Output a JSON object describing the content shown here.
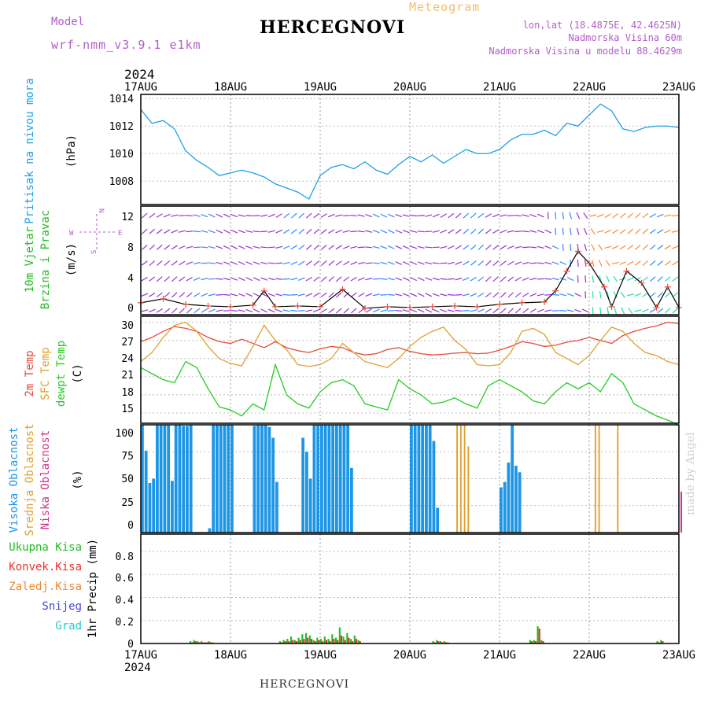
{
  "header": {
    "model_label": "Model",
    "model_name": "wrf-nmm_v3.9.1  e1km",
    "title": "HERCEGNOVI",
    "subtitle": "Meteogram",
    "lonlat": "lon,lat (18.4875E, 42.4625N)",
    "elevation": "Nadmorska Visina 60m",
    "model_elevation": "Nadmorska Visina u modelu 88.4629m",
    "year": "2024"
  },
  "footer": {
    "station": "HERCEGNOVI",
    "watermark": "made by Angel"
  },
  "colors": {
    "pressure": "#1ea0e6",
    "temp2m": "#e84a3a",
    "sfc": "#e0a030",
    "dewpt": "#22cc22",
    "high_cloud": "#1e96e6",
    "mid_cloud": "#e0a030",
    "low_cloud": "#d0308a",
    "total_precip": "#22bb22",
    "conv_precip": "#e83030",
    "frozen_precip": "#ee8833",
    "snow": "#4444dd",
    "graupel": "#22cccc",
    "wind_label": "#22aa22",
    "compass": "#b35cc9"
  },
  "x_axis": {
    "ticks": [
      "17AUG",
      "18AUG",
      "19AUG",
      "20AUG",
      "21AUG",
      "22AUG",
      "23AUG"
    ],
    "year": "2024"
  },
  "panels": {
    "pressure": {
      "label": "Pritisak na nivou mora",
      "unit": "(hPa)",
      "ticks": [
        "1008",
        "1010",
        "1012",
        "1014"
      ]
    },
    "wind": {
      "label1": "10m Vjetar",
      "label2": "Brzina i Pravac",
      "unit": "(m/s)",
      "ticks": [
        "0",
        "4",
        "8",
        "12"
      ],
      "compass_n": "N",
      "compass_e": "E",
      "compass_w": "W",
      "compass_s": "S"
    },
    "temp": {
      "label1": "2m Temp",
      "label2": "SFC Temp",
      "label3": "dewpt Temp",
      "unit": "(C)",
      "ticks": [
        "15",
        "18",
        "21",
        "24",
        "27",
        "30"
      ]
    },
    "cloud": {
      "label1": "Visoka Oblacnost",
      "label2": "Srednja Oblacnost",
      "label3": "Niska Oblacnost",
      "unit": "(%)",
      "ticks": [
        "0",
        "25",
        "50",
        "75",
        "100"
      ]
    },
    "precip": {
      "label": "1hr Precip (mm)",
      "ticks": [
        "0",
        "0.2",
        "0.4",
        "0.6",
        "0.8"
      ],
      "legend": [
        "Ukupna Kisa",
        "Konvek.Kisa",
        "Zaledj.Kisa",
        "Snijeg",
        "Grad"
      ]
    }
  },
  "chart_data": [
    {
      "type": "line",
      "title": "Pritisak na nivou mora",
      "ylabel": "(hPa)",
      "ylim": [
        1006.3,
        1014.3
      ],
      "x": [
        0,
        3,
        6,
        9,
        12,
        15,
        18,
        21,
        24,
        27,
        30,
        33,
        36,
        39,
        42,
        45,
        48,
        51,
        54,
        57,
        60,
        63,
        66,
        69,
        72,
        75,
        78,
        81,
        84,
        87,
        90,
        93,
        96,
        99,
        102,
        105,
        108,
        111,
        114,
        117,
        120,
        123,
        126,
        129,
        132,
        135,
        138,
        141,
        144
      ],
      "series": [
        {
          "name": "pressure",
          "values": [
            1013.2,
            1012.2,
            1012.4,
            1011.8,
            1010.2,
            1009.5,
            1009.0,
            1008.4,
            1008.6,
            1008.8,
            1008.6,
            1008.3,
            1007.8,
            1007.5,
            1007.2,
            1006.7,
            1008.4,
            1009.0,
            1009.2,
            1008.9,
            1009.4,
            1008.8,
            1008.5,
            1009.2,
            1009.8,
            1009.4,
            1009.9,
            1009.3,
            1009.8,
            1010.3,
            1010.0,
            1010.0,
            1010.3,
            1011.0,
            1011.4,
            1011.4,
            1011.7,
            1011.3,
            1012.2,
            1012.0,
            1012.8,
            1013.6,
            1013.1,
            1011.8,
            1011.6,
            1011.9,
            1012.0,
            1012.0,
            1011.9
          ]
        }
      ]
    },
    {
      "type": "line",
      "title": "10m Vjetar Brzina i Pravac",
      "ylabel": "(m/s)",
      "ylim": [
        -0.5,
        13.2
      ],
      "x": [
        0,
        6,
        12,
        18,
        24,
        30,
        33,
        36,
        42,
        48,
        54,
        60,
        66,
        72,
        78,
        84,
        90,
        96,
        102,
        108,
        111,
        114,
        117,
        120,
        124,
        126,
        130,
        134,
        138,
        141,
        144
      ],
      "series": [
        {
          "name": "wind speed",
          "values": [
            1.0,
            1.5,
            0.8,
            0.6,
            0.5,
            0.7,
            2.5,
            0.5,
            0.6,
            0.5,
            2.7,
            0.3,
            0.5,
            0.4,
            0.5,
            0.6,
            0.5,
            0.8,
            1.0,
            1.1,
            2.5,
            5.0,
            7.5,
            6.0,
            3.0,
            0.5,
            5.0,
            3.5,
            0.4,
            3.0,
            0.4
          ]
        }
      ]
    },
    {
      "type": "line",
      "title": "Temp",
      "ylabel": "(C)",
      "ylim": [
        13.3,
        31.0
      ],
      "x": [
        0,
        3,
        6,
        9,
        12,
        15,
        18,
        21,
        24,
        27,
        30,
        33,
        36,
        39,
        42,
        45,
        48,
        51,
        54,
        57,
        60,
        63,
        66,
        69,
        72,
        75,
        78,
        81,
        84,
        87,
        90,
        93,
        96,
        99,
        102,
        105,
        108,
        111,
        114,
        117,
        120,
        123,
        126,
        129,
        132,
        135,
        138,
        141,
        144
      ],
      "series": [
        {
          "name": "2m Temp",
          "values": [
            26.8,
            27.5,
            28.5,
            29.3,
            29.0,
            28.5,
            27.5,
            26.8,
            26.5,
            27.2,
            26.5,
            25.8,
            26.8,
            25.8,
            25.3,
            25.0,
            25.6,
            26.0,
            25.8,
            25.0,
            24.6,
            24.8,
            25.5,
            25.8,
            25.2,
            24.8,
            24.6,
            24.7,
            24.9,
            25.0,
            24.8,
            24.9,
            25.4,
            26.0,
            26.8,
            26.5,
            26.0,
            26.2,
            26.7,
            27.0,
            27.5,
            27.0,
            26.5,
            27.8,
            28.5,
            29.0,
            29.4,
            30.0,
            29.8
          ]
        },
        {
          "name": "SFC Temp",
          "values": [
            23.5,
            25.0,
            27.5,
            29.5,
            30.0,
            28.5,
            26.0,
            24.0,
            23.2,
            22.8,
            26.0,
            29.5,
            27.0,
            25.5,
            23.0,
            22.7,
            23.0,
            24.0,
            26.5,
            25.0,
            23.5,
            23.0,
            22.5,
            24.0,
            26.0,
            27.5,
            28.5,
            29.2,
            27.0,
            25.5,
            23.0,
            22.8,
            23.0,
            25.0,
            28.5,
            29.0,
            28.0,
            25.0,
            24.0,
            23.0,
            24.5,
            27.0,
            29.2,
            28.5,
            26.5,
            25.0,
            24.5,
            23.5,
            23.0
          ]
        },
        {
          "name": "dewpt Temp",
          "values": [
            22.5,
            21.5,
            20.5,
            20.0,
            23.5,
            22.5,
            19.0,
            16.0,
            15.5,
            14.5,
            16.5,
            15.5,
            23.0,
            18.0,
            16.5,
            15.8,
            18.5,
            20.0,
            20.5,
            19.5,
            16.5,
            16.0,
            15.5,
            20.5,
            19.0,
            18.0,
            16.5,
            16.8,
            17.5,
            16.5,
            15.8,
            19.5,
            20.5,
            19.5,
            18.5,
            17.0,
            16.5,
            18.5,
            20.0,
            19.0,
            20.0,
            18.5,
            21.5,
            20.0,
            16.5,
            15.5,
            14.5,
            13.8,
            13.0
          ]
        }
      ]
    },
    {
      "type": "bar",
      "title": "Oblacnost",
      "ylabel": "(%)",
      "ylim": [
        0,
        100
      ],
      "x": [
        0,
        1,
        2,
        3,
        4,
        5,
        6,
        7,
        8,
        9,
        10,
        11,
        12,
        13,
        14,
        18,
        19,
        20,
        21,
        22,
        23,
        24,
        30,
        31,
        32,
        33,
        34,
        35,
        36,
        37,
        38,
        43,
        44,
        45,
        46,
        47,
        48,
        49,
        50,
        51,
        52,
        53,
        54,
        55,
        56,
        57,
        58,
        59,
        60,
        61,
        72,
        73,
        74,
        75,
        76,
        77,
        78,
        79,
        80,
        81,
        82,
        84,
        85,
        86,
        87,
        88,
        89,
        90,
        91,
        92,
        93,
        94,
        95,
        96,
        97,
        98,
        99,
        100,
        101,
        102,
        103,
        104,
        105,
        106,
        120,
        121,
        122,
        127,
        128,
        144
      ],
      "series": [
        {
          "name": "Visoka Oblacnost",
          "values": [
            100,
            76,
            46,
            50,
            100,
            100,
            100,
            100,
            48,
            100,
            100,
            99,
            99,
            100,
            0,
            4,
            100,
            100,
            100,
            100,
            100,
            100,
            99,
            100,
            100,
            100,
            98,
            88,
            47,
            0,
            0,
            88,
            75,
            50,
            100,
            100,
            100,
            100,
            100,
            100,
            100,
            100,
            100,
            100,
            60,
            0,
            0,
            0,
            0,
            0,
            100,
            100,
            100,
            100,
            100,
            100,
            85,
            23,
            0,
            0,
            0,
            0,
            0,
            0,
            0,
            0,
            0,
            0,
            0,
            0,
            0,
            0,
            0,
            42,
            47,
            65,
            100,
            62,
            56,
            0,
            0,
            0,
            0,
            0,
            0,
            0,
            0,
            0,
            0,
            0
          ]
        },
        {
          "name": "Srednja Oblacnost",
          "values": [
            0,
            0,
            0,
            0,
            0,
            0,
            0,
            0,
            0,
            0,
            0,
            0,
            0,
            0,
            0,
            0,
            0,
            0,
            0,
            0,
            0,
            0,
            0,
            0,
            0,
            0,
            0,
            0,
            0,
            0,
            0,
            0,
            0,
            0,
            0,
            0,
            0,
            0,
            0,
            0,
            0,
            0,
            0,
            0,
            0,
            0,
            0,
            0,
            0,
            0,
            0,
            0,
            0,
            0,
            0,
            0,
            0,
            0,
            0,
            0,
            0,
            100,
            100,
            100,
            80,
            0,
            0,
            0,
            0,
            0,
            0,
            0,
            0,
            0,
            0,
            0,
            0,
            0,
            0,
            0,
            0,
            0,
            0,
            0,
            0,
            100,
            100,
            100,
            0,
            0
          ]
        },
        {
          "name": "Niska Oblacnost",
          "values": [
            0,
            0,
            0,
            0,
            0,
            0,
            0,
            0,
            0,
            0,
            0,
            0,
            0,
            0,
            0,
            0,
            0,
            0,
            0,
            0,
            0,
            0,
            0,
            0,
            0,
            0,
            0,
            0,
            0,
            0,
            0,
            0,
            0,
            0,
            0,
            0,
            0,
            0,
            0,
            0,
            0,
            0,
            0,
            0,
            0,
            0,
            0,
            0,
            0,
            0,
            0,
            0,
            0,
            0,
            0,
            0,
            0,
            0,
            0,
            0,
            0,
            0,
            0,
            0,
            0,
            0,
            0,
            0,
            0,
            0,
            0,
            0,
            0,
            0,
            0,
            0,
            0,
            0,
            0,
            0,
            0,
            0,
            0,
            0,
            0,
            0,
            0,
            0,
            0,
            38
          ]
        }
      ]
    },
    {
      "type": "bar",
      "title": "1hr Precip",
      "ylabel": "(mm)",
      "ylim": [
        0,
        0.95
      ],
      "x": [
        13,
        14,
        15,
        16,
        17,
        18,
        19,
        37,
        38,
        39,
        40,
        41,
        42,
        43,
        44,
        45,
        46,
        47,
        48,
        49,
        50,
        51,
        52,
        53,
        54,
        55,
        56,
        57,
        58,
        78,
        79,
        80,
        81,
        82,
        104,
        105,
        106,
        107,
        138,
        139
      ],
      "series": [
        {
          "name": "Ukupna Kisa",
          "values": [
            0.02,
            0.03,
            0.02,
            0.02,
            0.01,
            0.02,
            0.01,
            0.02,
            0.03,
            0.04,
            0.06,
            0.03,
            0.05,
            0.08,
            0.09,
            0.07,
            0.03,
            0.05,
            0.04,
            0.06,
            0.04,
            0.08,
            0.05,
            0.14,
            0.06,
            0.09,
            0.04,
            0.07,
            0.03,
            0.02,
            0.03,
            0.02,
            0.02,
            0.01,
            0.03,
            0.03,
            0.15,
            0.03,
            0.02,
            0.03
          ]
        },
        {
          "name": "Konvek.Kisa",
          "values": [
            0.01,
            0.02,
            0.01,
            0.01,
            0.01,
            0.01,
            0.0,
            0.01,
            0.02,
            0.02,
            0.03,
            0.02,
            0.03,
            0.04,
            0.05,
            0.04,
            0.02,
            0.03,
            0.02,
            0.03,
            0.02,
            0.04,
            0.03,
            0.07,
            0.03,
            0.05,
            0.02,
            0.04,
            0.02,
            0.01,
            0.02,
            0.01,
            0.01,
            0.0,
            0.02,
            0.02,
            0.13,
            0.02,
            0.01,
            0.02
          ]
        }
      ]
    }
  ]
}
